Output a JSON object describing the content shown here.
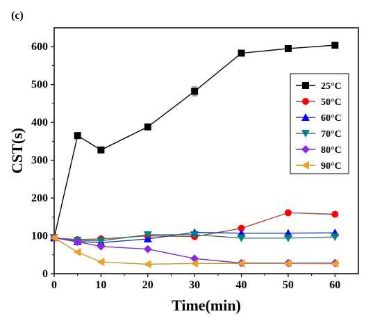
{
  "panel_label": "(c)",
  "chart_data": {
    "type": "line",
    "title": "",
    "xlabel": "Time(min)",
    "ylabel": "CST(s)",
    "xlim": [
      0,
      65
    ],
    "ylim": [
      0,
      650
    ],
    "xticks": [
      0,
      10,
      20,
      30,
      40,
      50,
      60
    ],
    "yticks": [
      0,
      100,
      200,
      300,
      400,
      500,
      600
    ],
    "legend_position": "top-right",
    "x": [
      0,
      5,
      10,
      20,
      30,
      40,
      50,
      60
    ],
    "series": [
      {
        "name": "25°C",
        "color": "#000000",
        "line_color": "#000000",
        "marker": "square",
        "values": [
          95,
          365,
          327,
          388,
          482,
          583,
          595,
          604
        ],
        "error": [
          0,
          0,
          0,
          0,
          12,
          8,
          0,
          0
        ]
      },
      {
        "name": "50°C",
        "color": "#ff0000",
        "line_color": "#a04a3a",
        "marker": "circle",
        "values": [
          95,
          90,
          92,
          100,
          98,
          120,
          161,
          157
        ],
        "error": [
          0,
          0,
          0,
          0,
          0,
          0,
          0,
          0
        ]
      },
      {
        "name": "60°C",
        "color": "#0000ff",
        "line_color": "#1a3ea0",
        "marker": "triangle-up",
        "values": [
          95,
          85,
          82,
          92,
          109,
          107,
          107,
          108
        ],
        "error": [
          0,
          0,
          0,
          0,
          0,
          0,
          0,
          0
        ]
      },
      {
        "name": "70°C",
        "color": "#008080",
        "line_color": "#3a7a72",
        "marker": "triangle-down",
        "values": [
          95,
          88,
          87,
          103,
          103,
          94,
          94,
          97
        ],
        "error": [
          0,
          0,
          0,
          0,
          0,
          0,
          0,
          0
        ]
      },
      {
        "name": "80°C",
        "color": "#8a2be2",
        "line_color": "#7a2ad0",
        "marker": "diamond",
        "values": [
          95,
          84,
          72,
          65,
          40,
          28,
          28,
          28
        ],
        "error": [
          0,
          0,
          0,
          0,
          0,
          0,
          0,
          0
        ]
      },
      {
        "name": "90°C",
        "color": "#f0a020",
        "line_color": "#b8a020",
        "marker": "triangle-left",
        "values": [
          95,
          57,
          31,
          25,
          27,
          27,
          27,
          26
        ],
        "error": [
          0,
          0,
          0,
          0,
          0,
          0,
          0,
          0
        ]
      }
    ]
  }
}
